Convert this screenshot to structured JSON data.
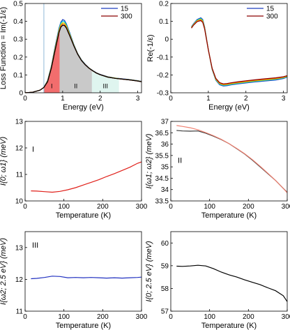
{
  "chart_data": [
    {
      "id": "p1",
      "type": "line",
      "xlabel": "Energy (eV)",
      "ylabel": "Loss Function = Im(-1/ε)",
      "xlim": [
        0,
        3.1
      ],
      "ylim": [
        0,
        0.5
      ],
      "xticks": [
        "0",
        "1",
        "2",
        "3"
      ],
      "yticks": [
        "0",
        "0.1",
        "0.2",
        "0.3",
        "0.4",
        "0.5"
      ],
      "legend": {
        "position": "top-right",
        "entries": [
          {
            "name": "15",
            "color": "#1f3fbf"
          },
          {
            "name": "300",
            "color": "#8b0000"
          }
        ]
      },
      "vline_x": 0.5,
      "regions": [
        {
          "label": "I",
          "x": [
            0.5,
            0.92
          ],
          "color": "#f26d6d"
        },
        {
          "label": "II",
          "x": [
            0.92,
            1.78
          ],
          "color": "#c9c9c9"
        },
        {
          "label": "III",
          "x": [
            1.78,
            2.5
          ],
          "color": "#dff5ef"
        }
      ],
      "series": [
        {
          "color": "#1f3fbf",
          "x": [
            0,
            0.2,
            0.4,
            0.5,
            0.6,
            0.7,
            0.8,
            0.9,
            0.95,
            1.0,
            1.05,
            1.1,
            1.2,
            1.3,
            1.4,
            1.5,
            1.6,
            1.7,
            1.8,
            1.9,
            2.0,
            2.2,
            2.4,
            2.6,
            2.8,
            3.0,
            3.1
          ],
          "y": [
            0.0,
            0.003,
            0.015,
            0.03,
            0.07,
            0.15,
            0.26,
            0.36,
            0.395,
            0.41,
            0.405,
            0.385,
            0.33,
            0.27,
            0.22,
            0.185,
            0.16,
            0.14,
            0.125,
            0.112,
            0.103,
            0.09,
            0.083,
            0.078,
            0.074,
            0.068,
            0.064
          ]
        },
        {
          "color": "#00bcd4",
          "x": [
            0,
            0.2,
            0.4,
            0.5,
            0.6,
            0.7,
            0.8,
            0.9,
            0.95,
            1.0,
            1.05,
            1.1,
            1.2,
            1.3,
            1.4,
            1.5,
            1.6,
            1.7,
            1.8,
            1.9,
            2.0,
            2.2,
            2.4,
            2.6,
            2.8,
            3.0,
            3.1
          ],
          "y": [
            0.0,
            0.003,
            0.015,
            0.03,
            0.068,
            0.148,
            0.255,
            0.355,
            0.39,
            0.402,
            0.398,
            0.38,
            0.326,
            0.268,
            0.219,
            0.184,
            0.159,
            0.139,
            0.124,
            0.111,
            0.102,
            0.089,
            0.082,
            0.077,
            0.073,
            0.067,
            0.063
          ]
        },
        {
          "color": "#c8d800",
          "x": [
            0,
            0.2,
            0.4,
            0.5,
            0.6,
            0.7,
            0.8,
            0.9,
            0.95,
            1.0,
            1.05,
            1.1,
            1.2,
            1.3,
            1.4,
            1.5,
            1.6,
            1.7,
            1.8,
            1.9,
            2.0,
            2.2,
            2.4,
            2.6,
            2.8,
            3.0,
            3.1
          ],
          "y": [
            0.0,
            0.003,
            0.015,
            0.03,
            0.066,
            0.145,
            0.25,
            0.348,
            0.382,
            0.393,
            0.39,
            0.374,
            0.322,
            0.266,
            0.218,
            0.183,
            0.158,
            0.139,
            0.124,
            0.111,
            0.102,
            0.089,
            0.082,
            0.077,
            0.073,
            0.067,
            0.063
          ]
        },
        {
          "color": "#ff6a00",
          "x": [
            0,
            0.2,
            0.4,
            0.5,
            0.6,
            0.7,
            0.8,
            0.9,
            0.95,
            1.0,
            1.05,
            1.1,
            1.2,
            1.3,
            1.4,
            1.5,
            1.6,
            1.7,
            1.8,
            1.9,
            2.0,
            2.2,
            2.4,
            2.6,
            2.8,
            3.0,
            3.1
          ],
          "y": [
            0.0,
            0.003,
            0.015,
            0.03,
            0.064,
            0.142,
            0.245,
            0.342,
            0.375,
            0.386,
            0.383,
            0.368,
            0.318,
            0.264,
            0.217,
            0.182,
            0.158,
            0.138,
            0.123,
            0.11,
            0.101,
            0.088,
            0.081,
            0.076,
            0.072,
            0.066,
            0.062
          ]
        },
        {
          "color": "#8b0000",
          "x": [
            0,
            0.2,
            0.4,
            0.5,
            0.6,
            0.7,
            0.8,
            0.9,
            0.95,
            1.0,
            1.05,
            1.1,
            1.2,
            1.3,
            1.4,
            1.5,
            1.6,
            1.7,
            1.8,
            1.9,
            2.0,
            2.2,
            2.4,
            2.6,
            2.8,
            3.0,
            3.1
          ],
          "y": [
            0.0,
            0.003,
            0.015,
            0.03,
            0.062,
            0.139,
            0.24,
            0.336,
            0.368,
            0.378,
            0.376,
            0.362,
            0.314,
            0.262,
            0.216,
            0.181,
            0.157,
            0.138,
            0.123,
            0.11,
            0.101,
            0.088,
            0.081,
            0.076,
            0.072,
            0.066,
            0.062
          ]
        },
        {
          "color": "#000000",
          "x": [
            0,
            0.2,
            0.4,
            0.5,
            0.6,
            0.7,
            0.8,
            0.9,
            0.95,
            1.0,
            1.05,
            1.1,
            1.2,
            1.3,
            1.4,
            1.5,
            1.6,
            1.7,
            1.8,
            1.9,
            2.0,
            2.2,
            2.4,
            2.6,
            2.8,
            3.0,
            3.1
          ],
          "y": [
            0.0,
            0.003,
            0.015,
            0.03,
            0.062,
            0.139,
            0.24,
            0.336,
            0.368,
            0.378,
            0.376,
            0.362,
            0.314,
            0.262,
            0.216,
            0.181,
            0.157,
            0.138,
            0.123,
            0.11,
            0.101,
            0.088,
            0.081,
            0.076,
            0.072,
            0.066,
            0.062
          ]
        }
      ]
    },
    {
      "id": "p2",
      "type": "line",
      "xlabel": "Energy (eV)",
      "ylabel": "Re(-1/ε)",
      "xlim": [
        0,
        3.1
      ],
      "ylim": [
        -0.3,
        0.2
      ],
      "xticks": [
        "0",
        "1",
        "2",
        "3"
      ],
      "yticks": [
        "-0.3",
        "-0.2",
        "-0.1",
        "0",
        "0.1",
        "0.2"
      ],
      "legend": {
        "position": "top-right",
        "entries": [
          {
            "name": "15",
            "color": "#1f3fbf"
          },
          {
            "name": "300",
            "color": "#8b0000"
          }
        ]
      },
      "series": [
        {
          "color": "#1f3fbf",
          "x": [
            0.55,
            0.6,
            0.7,
            0.8,
            0.85,
            0.9,
            1.0,
            1.1,
            1.2,
            1.3,
            1.4,
            1.5,
            1.6,
            1.8,
            2.0,
            2.2,
            2.4,
            2.6,
            2.8,
            3.0,
            3.1
          ],
          "y": [
            0.07,
            0.085,
            0.11,
            0.12,
            0.11,
            0.07,
            -0.06,
            -0.17,
            -0.23,
            -0.255,
            -0.262,
            -0.26,
            -0.256,
            -0.25,
            -0.245,
            -0.24,
            -0.236,
            -0.232,
            -0.228,
            -0.22,
            -0.212
          ]
        },
        {
          "color": "#00bcd4",
          "x": [
            0.55,
            0.6,
            0.7,
            0.8,
            0.85,
            0.9,
            1.0,
            1.1,
            1.2,
            1.3,
            1.4,
            1.5,
            1.6,
            1.8,
            2.0,
            2.2,
            2.4,
            2.6,
            2.8,
            3.0,
            3.1
          ],
          "y": [
            0.068,
            0.083,
            0.107,
            0.116,
            0.106,
            0.067,
            -0.06,
            -0.168,
            -0.228,
            -0.252,
            -0.259,
            -0.257,
            -0.253,
            -0.247,
            -0.242,
            -0.237,
            -0.233,
            -0.229,
            -0.225,
            -0.217,
            -0.21
          ]
        },
        {
          "color": "#c8d800",
          "x": [
            0.55,
            0.6,
            0.7,
            0.8,
            0.85,
            0.9,
            1.0,
            1.1,
            1.2,
            1.3,
            1.4,
            1.5,
            1.6,
            1.8,
            2.0,
            2.2,
            2.4,
            2.6,
            2.8,
            3.0,
            3.1
          ],
          "y": [
            0.066,
            0.081,
            0.104,
            0.112,
            0.102,
            0.064,
            -0.06,
            -0.166,
            -0.225,
            -0.249,
            -0.256,
            -0.254,
            -0.25,
            -0.244,
            -0.239,
            -0.234,
            -0.23,
            -0.226,
            -0.222,
            -0.215,
            -0.208
          ]
        },
        {
          "color": "#ff6a00",
          "x": [
            0.55,
            0.6,
            0.7,
            0.8,
            0.85,
            0.9,
            1.0,
            1.1,
            1.2,
            1.3,
            1.4,
            1.5,
            1.6,
            1.8,
            2.0,
            2.2,
            2.4,
            2.6,
            2.8,
            3.0,
            3.1
          ],
          "y": [
            0.064,
            0.079,
            0.101,
            0.108,
            0.098,
            0.061,
            -0.06,
            -0.164,
            -0.222,
            -0.246,
            -0.253,
            -0.251,
            -0.247,
            -0.241,
            -0.236,
            -0.231,
            -0.227,
            -0.223,
            -0.219,
            -0.212,
            -0.206
          ]
        },
        {
          "color": "#8b0000",
          "x": [
            0.55,
            0.6,
            0.7,
            0.8,
            0.85,
            0.9,
            1.0,
            1.1,
            1.2,
            1.3,
            1.4,
            1.5,
            1.6,
            1.8,
            2.0,
            2.2,
            2.4,
            2.6,
            2.8,
            3.0,
            3.1
          ],
          "y": [
            0.062,
            0.077,
            0.098,
            0.104,
            0.094,
            0.058,
            -0.06,
            -0.162,
            -0.219,
            -0.243,
            -0.25,
            -0.248,
            -0.244,
            -0.238,
            -0.233,
            -0.228,
            -0.224,
            -0.22,
            -0.216,
            -0.21,
            -0.204
          ]
        }
      ]
    },
    {
      "id": "p3",
      "type": "line",
      "xlabel": "Temperature (K)",
      "ylabel": "I{0; ω1} (meV)",
      "annotation": "I",
      "xlim": [
        0,
        300
      ],
      "ylim": [
        10,
        13
      ],
      "xticks": [
        "0",
        "100",
        "200",
        "300"
      ],
      "yticks": [
        "10",
        "11",
        "12",
        "13"
      ],
      "series": [
        {
          "color": "#e0201a",
          "x": [
            15,
            30,
            50,
            70,
            90,
            110,
            130,
            150,
            170,
            190,
            210,
            230,
            250,
            270,
            290,
            300
          ],
          "y": [
            10.38,
            10.37,
            10.35,
            10.33,
            10.36,
            10.42,
            10.5,
            10.6,
            10.7,
            10.8,
            10.92,
            11.03,
            11.15,
            11.27,
            11.42,
            11.47
          ]
        }
      ]
    },
    {
      "id": "p4",
      "type": "line",
      "xlabel": "Temperature (K)",
      "ylabel": "I{ω1; ω2} (meV)",
      "annotation": "II",
      "xlim": [
        0,
        300
      ],
      "ylim": [
        33.5,
        37
      ],
      "xticks": [
        "0",
        "100",
        "200",
        "300"
      ],
      "yticks": [
        "33.5",
        "34",
        "34.5",
        "35",
        "35.5",
        "36",
        "36.5",
        "37"
      ],
      "series": [
        {
          "color": "#3a3a3a",
          "x": [
            15,
            30,
            50,
            70,
            90,
            110,
            130,
            150,
            170,
            190,
            210,
            230,
            250,
            270,
            290,
            300
          ],
          "y": [
            36.6,
            36.58,
            36.57,
            36.58,
            36.48,
            36.35,
            36.2,
            36.02,
            35.8,
            35.57,
            35.3,
            35.0,
            34.7,
            34.4,
            34.05,
            33.88
          ]
        },
        {
          "color": "#f08070",
          "x": [
            15,
            30,
            50,
            70,
            90,
            110,
            130,
            150,
            170,
            190,
            210,
            230,
            250,
            270,
            290,
            300
          ],
          "y": [
            36.82,
            36.78,
            36.72,
            36.63,
            36.51,
            36.37,
            36.21,
            36.02,
            35.81,
            35.58,
            35.32,
            35.03,
            34.72,
            34.4,
            34.05,
            33.86
          ]
        }
      ]
    },
    {
      "id": "p5",
      "type": "line",
      "xlabel": "Temperature (K)",
      "ylabel": "I{ω2; 2.5 eV} (meV)",
      "annotation": "III",
      "xlim": [
        0,
        300
      ],
      "ylim": [
        11,
        13.5
      ],
      "xticks": [
        "0",
        "100",
        "200",
        "300"
      ],
      "yticks": [
        "11",
        "12",
        "13"
      ],
      "series": [
        {
          "color": "#2030c0",
          "x": [
            15,
            30,
            50,
            70,
            90,
            110,
            130,
            150,
            170,
            190,
            210,
            230,
            250,
            270,
            290,
            300
          ],
          "y": [
            12.02,
            12.03,
            12.06,
            12.1,
            12.09,
            12.05,
            12.06,
            12.05,
            12.06,
            12.05,
            12.04,
            12.05,
            12.04,
            12.05,
            12.06,
            12.07
          ]
        }
      ]
    },
    {
      "id": "p6",
      "type": "line",
      "xlabel": "Temperature (K)",
      "ylabel": "I{0; 2.5 eV} (meV)",
      "xlim": [
        0,
        300
      ],
      "ylim": [
        57,
        60.5
      ],
      "xticks": [
        "0",
        "100",
        "200",
        "300"
      ],
      "yticks": [
        "57",
        "58",
        "59",
        "60"
      ],
      "series": [
        {
          "color": "#000000",
          "x": [
            15,
            30,
            50,
            70,
            90,
            110,
            130,
            150,
            170,
            190,
            210,
            230,
            250,
            270,
            290,
            300
          ],
          "y": [
            58.98,
            58.97,
            58.99,
            59.02,
            58.99,
            58.87,
            58.72,
            58.6,
            58.5,
            58.38,
            58.27,
            58.17,
            58.03,
            57.9,
            57.68,
            57.42
          ]
        }
      ]
    }
  ]
}
